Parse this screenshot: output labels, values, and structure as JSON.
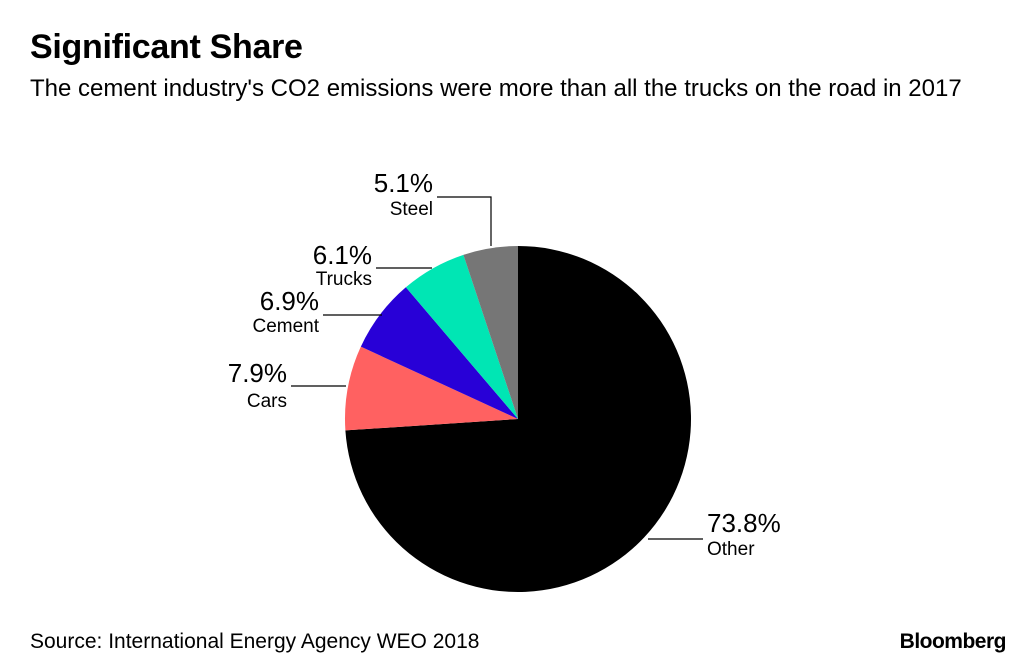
{
  "header": {
    "title": "Significant Share",
    "subtitle": "The cement industry's CO2 emissions were more than all the trucks on the road in 2017"
  },
  "footer": {
    "source": "Source: International Energy Agency WEO 2018",
    "brand": "Bloomberg"
  },
  "chart_data": {
    "type": "pie",
    "title": "Significant Share",
    "subtitle": "The cement industry's CO2 emissions were more than all the trucks on the road in 2017",
    "start": "12 o'clock, clockwise",
    "slices": [
      {
        "label": "Other",
        "value": 73.8,
        "display": "73.8%",
        "color": "#000000"
      },
      {
        "label": "Cars",
        "value": 7.9,
        "display": "7.9%",
        "color": "#ff6161"
      },
      {
        "label": "Cement",
        "value": 6.9,
        "display": "6.9%",
        "color": "#2800d7"
      },
      {
        "label": "Trucks",
        "value": 6.1,
        "display": "6.1%",
        "color": "#00e6b4"
      },
      {
        "label": "Steel",
        "value": 5.1,
        "display": "5.1%",
        "color": "#767676"
      }
    ]
  }
}
